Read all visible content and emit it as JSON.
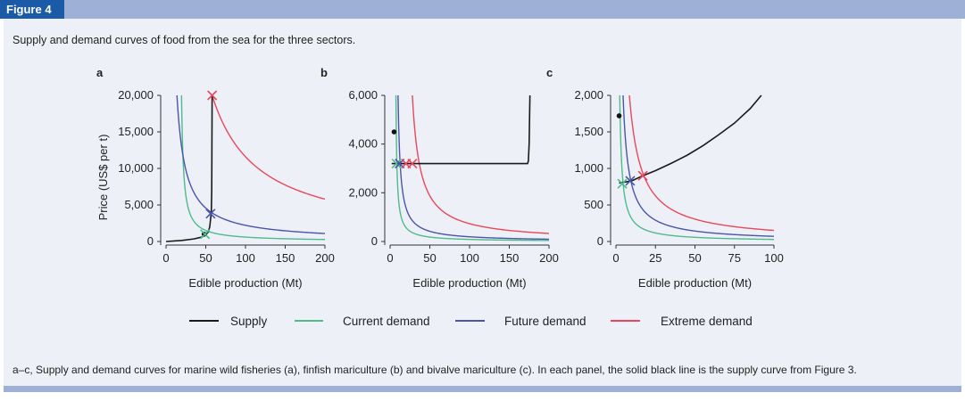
{
  "header": {
    "figure_label": "Figure 4"
  },
  "caption": "Supply and demand curves of food from the sea for the three sectors.",
  "footnote": "a–c, Supply and demand curves for marine wild fisheries (a), finfish mariculture (b) and bivalve mariculture (c). In each panel, the solid black line is the supply curve from Figure 3.",
  "legend": [
    {
      "label": "Supply",
      "color": "#1a1a1a"
    },
    {
      "label": "Current demand",
      "color": "#4dbb8a"
    },
    {
      "label": "Future demand",
      "color": "#4a55a8"
    },
    {
      "label": "Extreme demand",
      "color": "#e8475c"
    }
  ],
  "chart_data": [
    {
      "type": "line",
      "panel_label": "a",
      "xlabel": "Edible production (Mt)",
      "ylabel": "Price (US$ per t)",
      "xlim": [
        0,
        200
      ],
      "ylim": [
        0,
        20000
      ],
      "x_ticks": [
        0,
        50,
        100,
        150,
        200
      ],
      "x_tick_labels": [
        "0",
        "50",
        "100",
        "150",
        "200"
      ],
      "y_ticks": [
        0,
        5000,
        10000,
        15000,
        20000
      ],
      "y_tick_labels": [
        "0",
        "5,000",
        "10,000",
        "15,000",
        "20,000"
      ],
      "series": [
        {
          "name": "Supply",
          "kind": "points",
          "points": [
            [
              0,
              0
            ],
            [
              20,
              150
            ],
            [
              35,
              350
            ],
            [
              45,
              600
            ],
            [
              50,
              900
            ],
            [
              53,
              1300
            ],
            [
              55,
              2000
            ],
            [
              56,
              3000
            ],
            [
              57,
              4000
            ],
            [
              57.5,
              7000
            ],
            [
              58,
              20000
            ]
          ]
        },
        {
          "name": "Current demand",
          "kind": "demand",
          "k": 50000,
          "x0": 17
        },
        {
          "name": "Future demand",
          "kind": "demand",
          "k": 215000,
          "x0": 3
        },
        {
          "name": "Extreme demand",
          "kind": "demand",
          "k": 1160000,
          "x0": 0
        }
      ],
      "dot": [
        48,
        1000
      ],
      "markers": [
        {
          "series": "Current demand",
          "point": [
            49,
            1000
          ]
        },
        {
          "series": "Future demand",
          "point": [
            56,
            3800
          ]
        },
        {
          "series": "Extreme demand",
          "point": [
            58,
            20000
          ]
        }
      ]
    },
    {
      "type": "line",
      "panel_label": "b",
      "xlabel": "Edible production (Mt)",
      "ylabel": "",
      "xlim": [
        0,
        200
      ],
      "ylim": [
        0,
        6000
      ],
      "x_ticks": [
        0,
        50,
        100,
        150,
        200
      ],
      "x_tick_labels": [
        "0",
        "50",
        "100",
        "150",
        "200"
      ],
      "y_ticks": [
        0,
        2000,
        4000,
        6000
      ],
      "y_tick_labels": [
        "0",
        "2,000",
        "4,000",
        "6,000"
      ],
      "series": [
        {
          "name": "Supply",
          "kind": "points",
          "points": [
            [
              2,
              3200
            ],
            [
              173,
              3200
            ],
            [
              174,
              3300
            ],
            [
              175,
              4000
            ],
            [
              175.5,
              5000
            ],
            [
              176,
              6000
            ]
          ]
        },
        {
          "name": "Current demand",
          "kind": "demand",
          "k": 8000,
          "x0": 6
        },
        {
          "name": "Future demand",
          "kind": "demand",
          "k": 18000,
          "x0": 7
        },
        {
          "name": "Extreme demand",
          "kind": "demand",
          "k": 60000,
          "x0": 18
        }
      ],
      "dot": [
        5,
        4500
      ],
      "markers": [
        {
          "series": "Current demand",
          "point": [
            8,
            3200
          ]
        },
        {
          "series": "Future demand",
          "point": [
            12,
            3200
          ]
        },
        {
          "series": "Extreme demand",
          "point": [
            20,
            3200
          ]
        },
        {
          "series": "Extreme demand",
          "point": [
            28,
            3200
          ]
        }
      ]
    },
    {
      "type": "line",
      "panel_label": "c",
      "xlabel": "Edible production (Mt)",
      "ylabel": "",
      "xlim": [
        0,
        100
      ],
      "ylim": [
        0,
        2000
      ],
      "x_ticks": [
        0,
        25,
        50,
        75,
        100
      ],
      "x_tick_labels": [
        "0",
        "25",
        "50",
        "75",
        "100"
      ],
      "y_ticks": [
        0,
        500,
        1000,
        1500,
        2000
      ],
      "y_tick_labels": [
        "0",
        "500",
        "1,000",
        "1,500",
        "2,000"
      ],
      "series": [
        {
          "name": "Supply",
          "kind": "points",
          "points": [
            [
              2,
              800
            ],
            [
              5,
              810
            ],
            [
              10,
              830
            ],
            [
              17,
              900
            ],
            [
              25,
              970
            ],
            [
              35,
              1070
            ],
            [
              45,
              1180
            ],
            [
              55,
              1310
            ],
            [
              65,
              1460
            ],
            [
              75,
              1620
            ],
            [
              85,
              1820
            ],
            [
              92,
              2000
            ]
          ]
        },
        {
          "name": "Current demand",
          "kind": "demand",
          "k": 2800,
          "x0": 1
        },
        {
          "name": "Future demand",
          "kind": "demand",
          "k": 7000,
          "x0": 1
        },
        {
          "name": "Extreme demand",
          "kind": "demand",
          "k": 15000,
          "x0": 1
        }
      ],
      "dot": [
        2,
        1720
      ],
      "markers": [
        {
          "series": "Current demand",
          "point": [
            4,
            790
          ]
        },
        {
          "series": "Future demand",
          "point": [
            9,
            830
          ]
        },
        {
          "series": "Extreme demand",
          "point": [
            17,
            900
          ]
        }
      ]
    }
  ]
}
